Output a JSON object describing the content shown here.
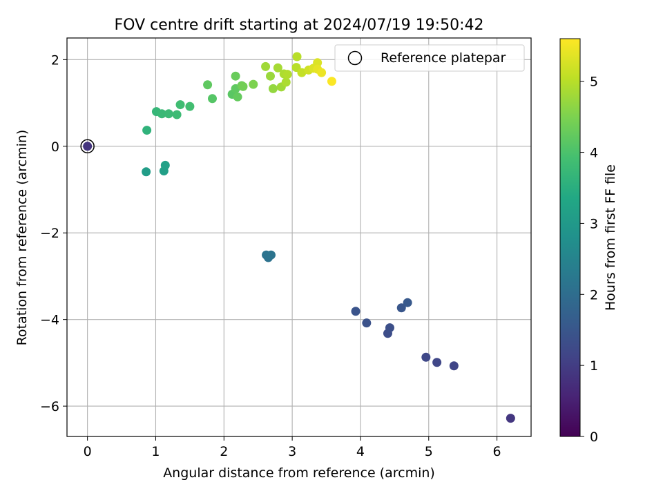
{
  "chart_data": {
    "type": "scatter",
    "title": "FOV centre drift starting at 2024/07/19 19:50:42",
    "xlabel": "Angular distance from reference (arcmin)",
    "ylabel": "Rotation from reference (arcmin)",
    "xlim": [
      -0.3,
      6.5
    ],
    "ylim": [
      -6.7,
      2.5
    ],
    "x_ticks": [
      0,
      1,
      2,
      3,
      4,
      5,
      6
    ],
    "y_ticks": [
      -6,
      -4,
      -2,
      0,
      2
    ],
    "x_tick_labels": [
      "0",
      "1",
      "2",
      "3",
      "4",
      "5",
      "6"
    ],
    "y_tick_labels": [
      "−6",
      "−4",
      "−2",
      "0",
      "2"
    ],
    "grid": true,
    "legend": {
      "placement": "top-right",
      "entries": [
        "Reference platepar"
      ]
    },
    "colorbar": {
      "label": "Hours from first FF file",
      "range": [
        0,
        5.6
      ],
      "ticks": [
        0,
        1,
        2,
        3,
        4,
        5
      ],
      "tick_labels": [
        "0",
        "1",
        "2",
        "3",
        "4",
        "5"
      ],
      "colormap": "viridis"
    },
    "reference_point": {
      "x": 0,
      "y": 0
    },
    "points": [
      {
        "x": 0.0,
        "y": 0.0,
        "h": 0.85
      },
      {
        "x": 6.2,
        "y": -6.28,
        "h": 0.9
      },
      {
        "x": 5.37,
        "y": -5.07,
        "h": 1.15
      },
      {
        "x": 5.12,
        "y": -4.99,
        "h": 1.18
      },
      {
        "x": 4.96,
        "y": -4.87,
        "h": 1.2
      },
      {
        "x": 4.4,
        "y": -4.32,
        "h": 1.3
      },
      {
        "x": 4.43,
        "y": -4.19,
        "h": 1.35
      },
      {
        "x": 4.09,
        "y": -4.08,
        "h": 1.4
      },
      {
        "x": 3.93,
        "y": -3.81,
        "h": 1.45
      },
      {
        "x": 4.6,
        "y": -3.73,
        "h": 1.5
      },
      {
        "x": 4.69,
        "y": -3.61,
        "h": 1.55
      },
      {
        "x": 2.65,
        "y": -2.57,
        "h": 2.1
      },
      {
        "x": 2.62,
        "y": -2.51,
        "h": 2.12
      },
      {
        "x": 2.69,
        "y": -2.51,
        "h": 2.15
      },
      {
        "x": 0.86,
        "y": -0.59,
        "h": 3.1
      },
      {
        "x": 1.12,
        "y": -0.57,
        "h": 3.15
      },
      {
        "x": 1.14,
        "y": -0.44,
        "h": 3.18
      },
      {
        "x": 0.87,
        "y": 0.37,
        "h": 3.6
      },
      {
        "x": 1.01,
        "y": 0.8,
        "h": 3.7
      },
      {
        "x": 1.09,
        "y": 0.75,
        "h": 3.75
      },
      {
        "x": 1.19,
        "y": 0.75,
        "h": 3.78
      },
      {
        "x": 1.31,
        "y": 0.73,
        "h": 3.8
      },
      {
        "x": 1.36,
        "y": 0.96,
        "h": 3.85
      },
      {
        "x": 1.5,
        "y": 0.92,
        "h": 3.88
      },
      {
        "x": 1.76,
        "y": 1.42,
        "h": 4.2
      },
      {
        "x": 1.83,
        "y": 1.1,
        "h": 4.1
      },
      {
        "x": 2.12,
        "y": 1.2,
        "h": 4.15
      },
      {
        "x": 2.17,
        "y": 1.33,
        "h": 4.2
      },
      {
        "x": 2.2,
        "y": 1.14,
        "h": 4.25
      },
      {
        "x": 2.17,
        "y": 1.62,
        "h": 4.3
      },
      {
        "x": 2.26,
        "y": 1.4,
        "h": 4.35
      },
      {
        "x": 2.28,
        "y": 1.38,
        "h": 4.4
      },
      {
        "x": 2.43,
        "y": 1.43,
        "h": 4.5
      },
      {
        "x": 2.61,
        "y": 1.84,
        "h": 4.8
      },
      {
        "x": 2.68,
        "y": 1.62,
        "h": 4.75
      },
      {
        "x": 2.72,
        "y": 1.33,
        "h": 4.7
      },
      {
        "x": 2.79,
        "y": 1.81,
        "h": 4.85
      },
      {
        "x": 2.84,
        "y": 1.37,
        "h": 4.8
      },
      {
        "x": 2.88,
        "y": 1.67,
        "h": 4.9
      },
      {
        "x": 2.91,
        "y": 1.48,
        "h": 4.9
      },
      {
        "x": 2.93,
        "y": 1.66,
        "h": 4.95
      },
      {
        "x": 3.06,
        "y": 1.82,
        "h": 5.0
      },
      {
        "x": 3.07,
        "y": 2.07,
        "h": 5.0
      },
      {
        "x": 3.14,
        "y": 1.7,
        "h": 5.1
      },
      {
        "x": 3.24,
        "y": 1.76,
        "h": 5.2
      },
      {
        "x": 3.31,
        "y": 1.8,
        "h": 5.3
      },
      {
        "x": 3.37,
        "y": 1.93,
        "h": 5.3
      },
      {
        "x": 3.37,
        "y": 1.78,
        "h": 5.4
      },
      {
        "x": 3.43,
        "y": 1.7,
        "h": 5.45
      },
      {
        "x": 3.58,
        "y": 1.5,
        "h": 5.58
      }
    ]
  }
}
